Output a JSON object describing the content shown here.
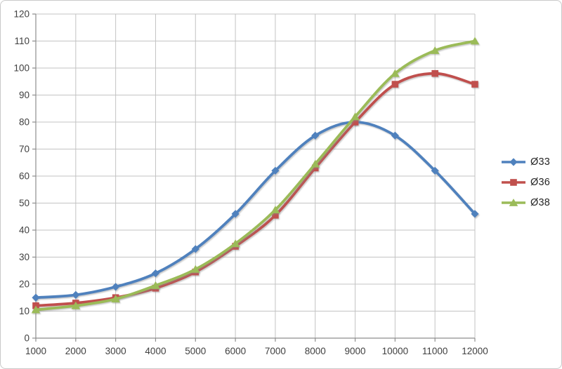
{
  "chart_data": {
    "type": "line",
    "title": "",
    "xlabel": "",
    "ylabel": "",
    "xlim": [
      1000,
      12000
    ],
    "ylim": [
      0,
      120
    ],
    "x": [
      1000,
      2000,
      3000,
      4000,
      5000,
      6000,
      7000,
      8000,
      9000,
      10000,
      11000,
      12000
    ],
    "x_tick_labels": [
      "1000",
      "2000",
      "3000",
      "4000",
      "5000",
      "6000",
      "7000",
      "8000",
      "9000",
      "10000",
      "11000",
      "12000"
    ],
    "y_tick_labels": [
      "0",
      "10",
      "20",
      "30",
      "40",
      "50",
      "60",
      "70",
      "80",
      "90",
      "100",
      "110",
      "120"
    ],
    "ytick_step": 10,
    "grid": true,
    "smooth_lines": true,
    "legend_position": "right",
    "series": [
      {
        "name": "Ø33",
        "color": "#4F81BD",
        "marker": "diamond",
        "values": [
          15,
          16,
          19,
          24,
          33,
          46,
          62,
          75,
          80,
          75,
          62,
          46
        ]
      },
      {
        "name": "Ø36",
        "color": "#C0504D",
        "marker": "square",
        "values": [
          12,
          13,
          15,
          18.5,
          24.5,
          34,
          45.5,
          63,
          80,
          94,
          98,
          94
        ]
      },
      {
        "name": "Ø38",
        "color": "#9BBB59",
        "marker": "triangle",
        "values": [
          10.5,
          12,
          14.5,
          19.5,
          25.5,
          35,
          47.5,
          64.5,
          82,
          98,
          106.5,
          110
        ]
      }
    ]
  },
  "frame": {
    "background": "#FFFFFF",
    "border_color": "#C9C9C9",
    "gridline_color": "#C3C3C3",
    "axis_color": "#8E8E8E",
    "tick_label_color": "#3F3F3F"
  }
}
